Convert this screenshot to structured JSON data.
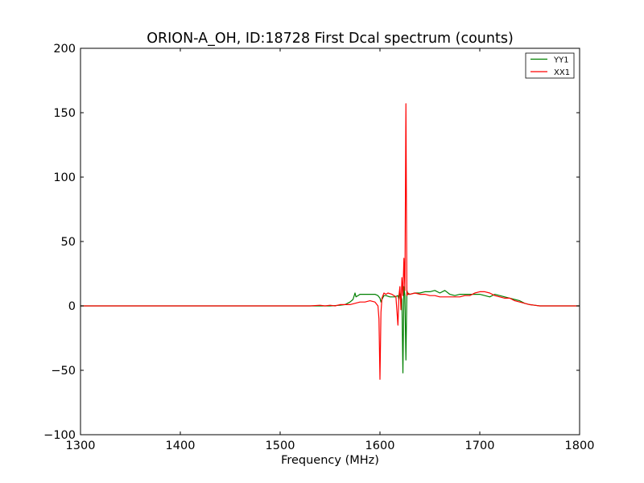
{
  "chart_data": {
    "type": "line",
    "title": "ORION-A_OH, ID:18728 First Dcal spectrum (counts)",
    "xlabel": "Frequency (MHz)",
    "ylabel": "",
    "xlim": [
      1300,
      1800
    ],
    "ylim": [
      -100,
      200
    ],
    "xticks": [
      1300,
      1400,
      1500,
      1600,
      1700,
      1800
    ],
    "yticks": [
      -100,
      -50,
      0,
      50,
      100,
      150,
      200
    ],
    "xtick_labels": [
      "1300",
      "1400",
      "1500",
      "1600",
      "1700",
      "1800"
    ],
    "ytick_labels": [
      "−100",
      "−50",
      "0",
      "50",
      "100",
      "150",
      "200"
    ],
    "grid": false,
    "legend_position": "top-right",
    "series": [
      {
        "name": "YY1",
        "color": "#008000",
        "x": [
          1300,
          1400,
          1500,
          1550,
          1560,
          1565,
          1570,
          1573,
          1575,
          1576,
          1578,
          1580,
          1585,
          1590,
          1595,
          1598,
          1600,
          1601,
          1602,
          1604,
          1606,
          1610,
          1615,
          1618,
          1619,
          1620,
          1621,
          1622,
          1623,
          1624,
          1625,
          1626,
          1627,
          1628,
          1630,
          1635,
          1640,
          1645,
          1650,
          1655,
          1660,
          1665,
          1670,
          1675,
          1680,
          1685,
          1690,
          1695,
          1700,
          1705,
          1710,
          1715,
          1720,
          1725,
          1730,
          1735,
          1740,
          1745,
          1750,
          1755,
          1760,
          1770,
          1780,
          1800
        ],
        "values": [
          0,
          0,
          0,
          0,
          0.5,
          1,
          3,
          5,
          10,
          7,
          8,
          9,
          9,
          9,
          9,
          8,
          6,
          3,
          5,
          8,
          8,
          7,
          7,
          8,
          5,
          10,
          8,
          5,
          -52,
          15,
          8,
          -42,
          12,
          9,
          9,
          10,
          10,
          11,
          11,
          12,
          10,
          12,
          9,
          8,
          9,
          9,
          9,
          9,
          9,
          8,
          7,
          9,
          8,
          7,
          6,
          5,
          4,
          2,
          1,
          0.5,
          0,
          0,
          0,
          0
        ]
      },
      {
        "name": "XX1",
        "color": "#ff0000",
        "x": [
          1300,
          1400,
          1500,
          1530,
          1540,
          1545,
          1550,
          1555,
          1560,
          1570,
          1575,
          1580,
          1585,
          1590,
          1595,
          1598,
          1599,
          1600,
          1601,
          1602,
          1604,
          1606,
          1608,
          1612,
          1616,
          1618,
          1619,
          1620,
          1621,
          1622,
          1623,
          1624,
          1625,
          1626,
          1627,
          1628,
          1630,
          1635,
          1640,
          1645,
          1650,
          1655,
          1660,
          1665,
          1670,
          1675,
          1680,
          1685,
          1690,
          1695,
          1700,
          1705,
          1710,
          1715,
          1720,
          1725,
          1730,
          1735,
          1740,
          1745,
          1750,
          1755,
          1760,
          1770,
          1780,
          1800
        ],
        "values": [
          0,
          0,
          0,
          0,
          0.5,
          0,
          0.5,
          0,
          1,
          1,
          2,
          3,
          3,
          4,
          3,
          0,
          -10,
          -57,
          -5,
          6,
          10,
          9,
          10,
          9,
          7,
          -15,
          8,
          15,
          -3,
          22,
          8,
          37,
          12,
          157,
          8,
          10,
          9,
          10,
          9,
          9,
          8,
          8,
          7,
          7,
          7,
          7,
          7,
          8,
          8,
          10,
          11,
          11,
          10,
          8,
          7,
          6,
          6,
          4,
          3,
          2,
          1,
          0.5,
          0,
          0,
          0,
          0
        ]
      }
    ]
  }
}
